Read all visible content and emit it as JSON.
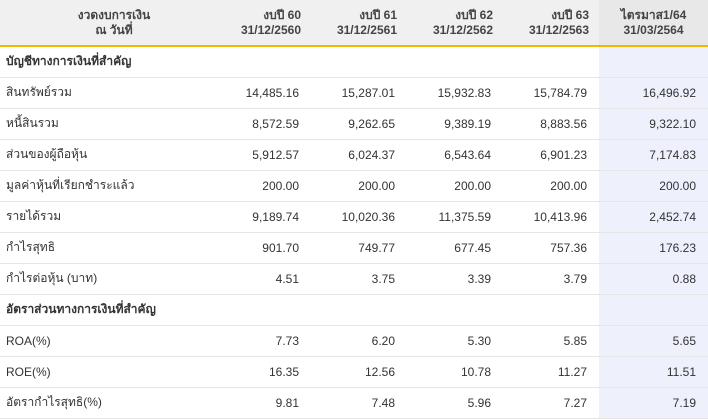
{
  "header": {
    "label_line1": "งวดงบการเงิน",
    "label_line2": "ณ วันที่",
    "columns": [
      {
        "line1": "งบปี 60",
        "line2": "31/12/2560"
      },
      {
        "line1": "งบปี 61",
        "line2": "31/12/2561"
      },
      {
        "line1": "งบปี 62",
        "line2": "31/12/2562"
      },
      {
        "line1": "งบปี 63",
        "line2": "31/12/2563"
      },
      {
        "line1": "ไตรมาส1/64",
        "line2": "31/03/2564"
      }
    ]
  },
  "section1": {
    "title": "บัญชีทางการเงินที่สำคัญ"
  },
  "rows1": [
    {
      "label": "สินทรัพย์รวม",
      "v": [
        "14,485.16",
        "15,287.01",
        "15,932.83",
        "15,784.79",
        "16,496.92"
      ]
    },
    {
      "label": "หนี้สินรวม",
      "v": [
        "8,572.59",
        "9,262.65",
        "9,389.19",
        "8,883.56",
        "9,322.10"
      ]
    },
    {
      "label": "ส่วนของผู้ถือหุ้น",
      "v": [
        "5,912.57",
        "6,024.37",
        "6,543.64",
        "6,901.23",
        "7,174.83"
      ]
    },
    {
      "label": "มูลค่าหุ้นที่เรียกชำระแล้ว",
      "v": [
        "200.00",
        "200.00",
        "200.00",
        "200.00",
        "200.00"
      ]
    },
    {
      "label": "รายได้รวม",
      "v": [
        "9,189.74",
        "10,020.36",
        "11,375.59",
        "10,413.96",
        "2,452.74"
      ]
    },
    {
      "label": "กำไรสุทธิ",
      "v": [
        "901.70",
        "749.77",
        "677.45",
        "757.36",
        "176.23"
      ]
    },
    {
      "label": "กำไรต่อหุ้น (บาท)",
      "v": [
        "4.51",
        "3.75",
        "3.39",
        "3.79",
        "0.88"
      ]
    }
  ],
  "section2": {
    "title": "อัตราส่วนทางการเงินที่สำคัญ"
  },
  "rows2": [
    {
      "label": "ROA(%)",
      "v": [
        "7.73",
        "6.20",
        "5.30",
        "5.85",
        "5.65"
      ]
    },
    {
      "label": "ROE(%)",
      "v": [
        "16.35",
        "12.56",
        "10.78",
        "11.27",
        "11.51"
      ]
    },
    {
      "label": "อัตรากำไรสุทธิ(%)",
      "v": [
        "9.81",
        "7.48",
        "5.96",
        "7.27",
        "7.19"
      ]
    }
  ],
  "colors": {
    "accent": "#f4b400",
    "highlight_column": "#eef0fb",
    "header_bg": "#f0f0f0"
  }
}
